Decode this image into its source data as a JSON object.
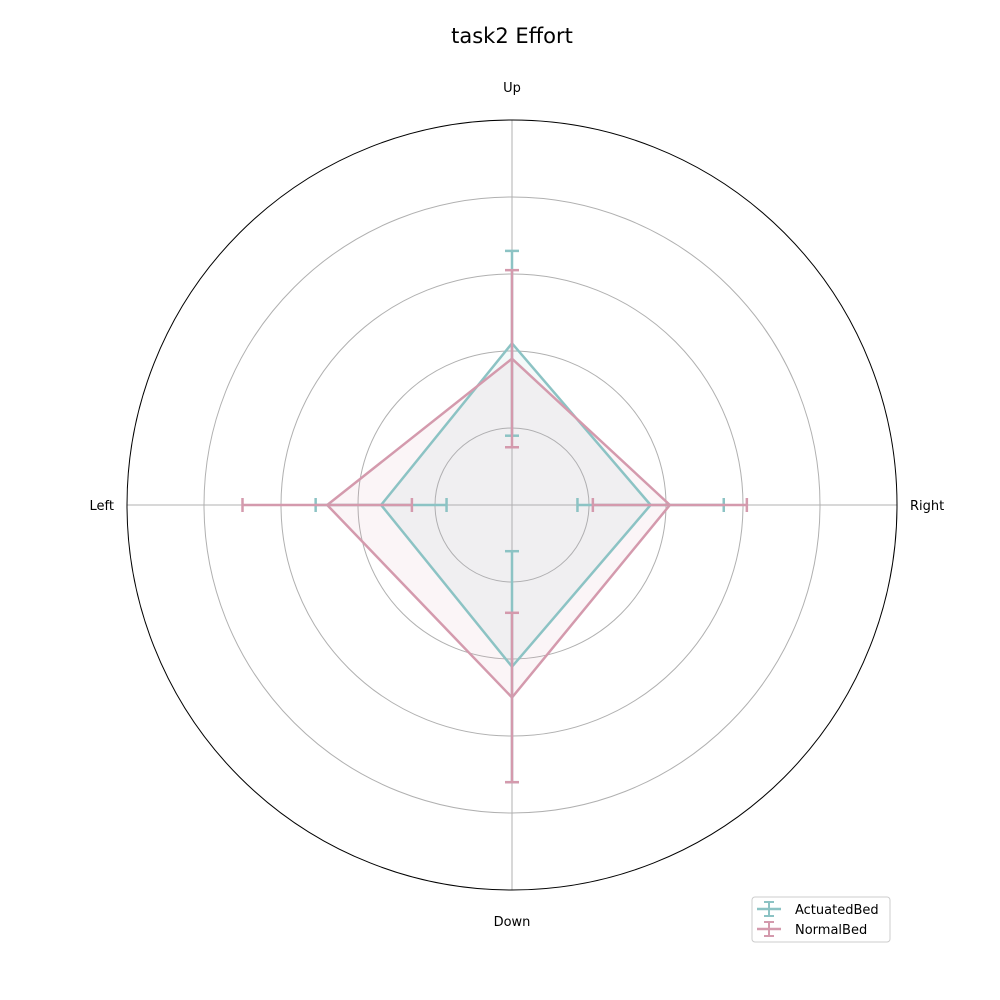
{
  "chart_data": {
    "type": "radar",
    "title": "task2 Effort",
    "categories": [
      "Right",
      "Up",
      "Left",
      "Down"
    ],
    "rlim": [
      0,
      5
    ],
    "grid": true,
    "legend_position": "bottom-right",
    "series": [
      {
        "name": "ActuatedBed",
        "color": "#8cc3c4",
        "values": [
          1.8,
          2.1,
          1.7,
          2.1
        ],
        "error": [
          0.95,
          1.2,
          0.85,
          1.5
        ]
      },
      {
        "name": "NormalBed",
        "color": "#d49aad",
        "values": [
          2.05,
          1.9,
          2.4,
          2.5
        ],
        "error": [
          1.0,
          1.15,
          1.1,
          1.1
        ]
      }
    ]
  }
}
